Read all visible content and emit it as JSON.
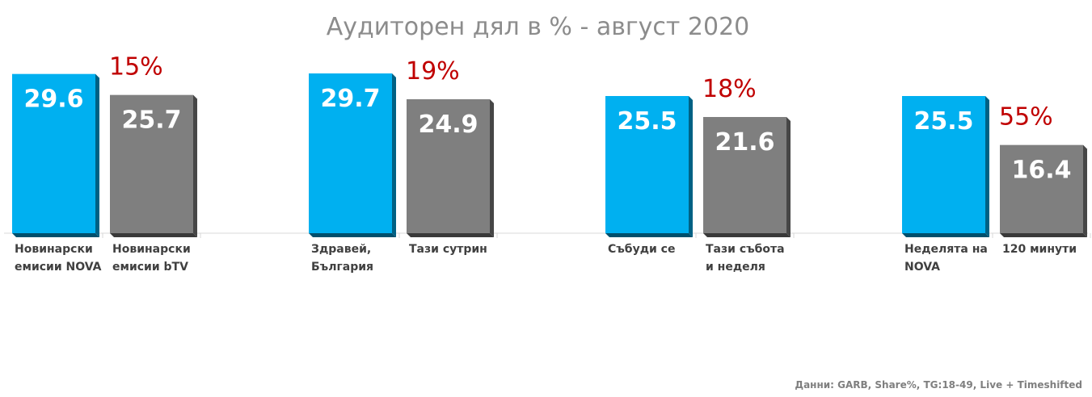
{
  "chart_data": {
    "type": "bar",
    "title": "Аудиторен дял в % - август 2020",
    "xlabel": "",
    "ylabel": "",
    "ylim": [
      0,
      30
    ],
    "grid": false,
    "groups": [
      {
        "bars": [
          {
            "label": "Новинарски емисии NOVA",
            "value": 29.6,
            "value_label": "29.6",
            "color": "#00b0f0"
          },
          {
            "label": "Новинарски емисии bTV",
            "value": 25.7,
            "value_label": "25.7",
            "color": "#7f7f7f"
          }
        ],
        "annotation": "15%"
      },
      {
        "bars": [
          {
            "label": "Здравей, България",
            "value": 29.7,
            "value_label": "29.7",
            "color": "#00b0f0"
          },
          {
            "label": "Тази сутрин",
            "value": 24.9,
            "value_label": "24.9",
            "color": "#7f7f7f"
          }
        ],
        "annotation": "19%"
      },
      {
        "bars": [
          {
            "label": "Събуди се",
            "value": 25.5,
            "value_label": "25.5",
            "color": "#00b0f0"
          },
          {
            "label": "Тази събота и неделя",
            "value": 21.6,
            "value_label": "21.6",
            "color": "#7f7f7f"
          }
        ],
        "annotation": "18%"
      },
      {
        "bars": [
          {
            "label": "Неделята на NOVA",
            "value": 25.5,
            "value_label": "25.5",
            "color": "#00b0f0"
          },
          {
            "label": "120 минути",
            "value": 16.4,
            "value_label": "16.4",
            "color": "#7f7f7f"
          }
        ],
        "annotation": "55%"
      }
    ],
    "colors": {
      "nova": "#00b0f0",
      "competitor": "#7f7f7f",
      "annotation": "#c00000",
      "title": "#8c8c8c"
    }
  },
  "source_note": "Данни: GARB, Share%, TG:18-49, Live + Timeshifted"
}
